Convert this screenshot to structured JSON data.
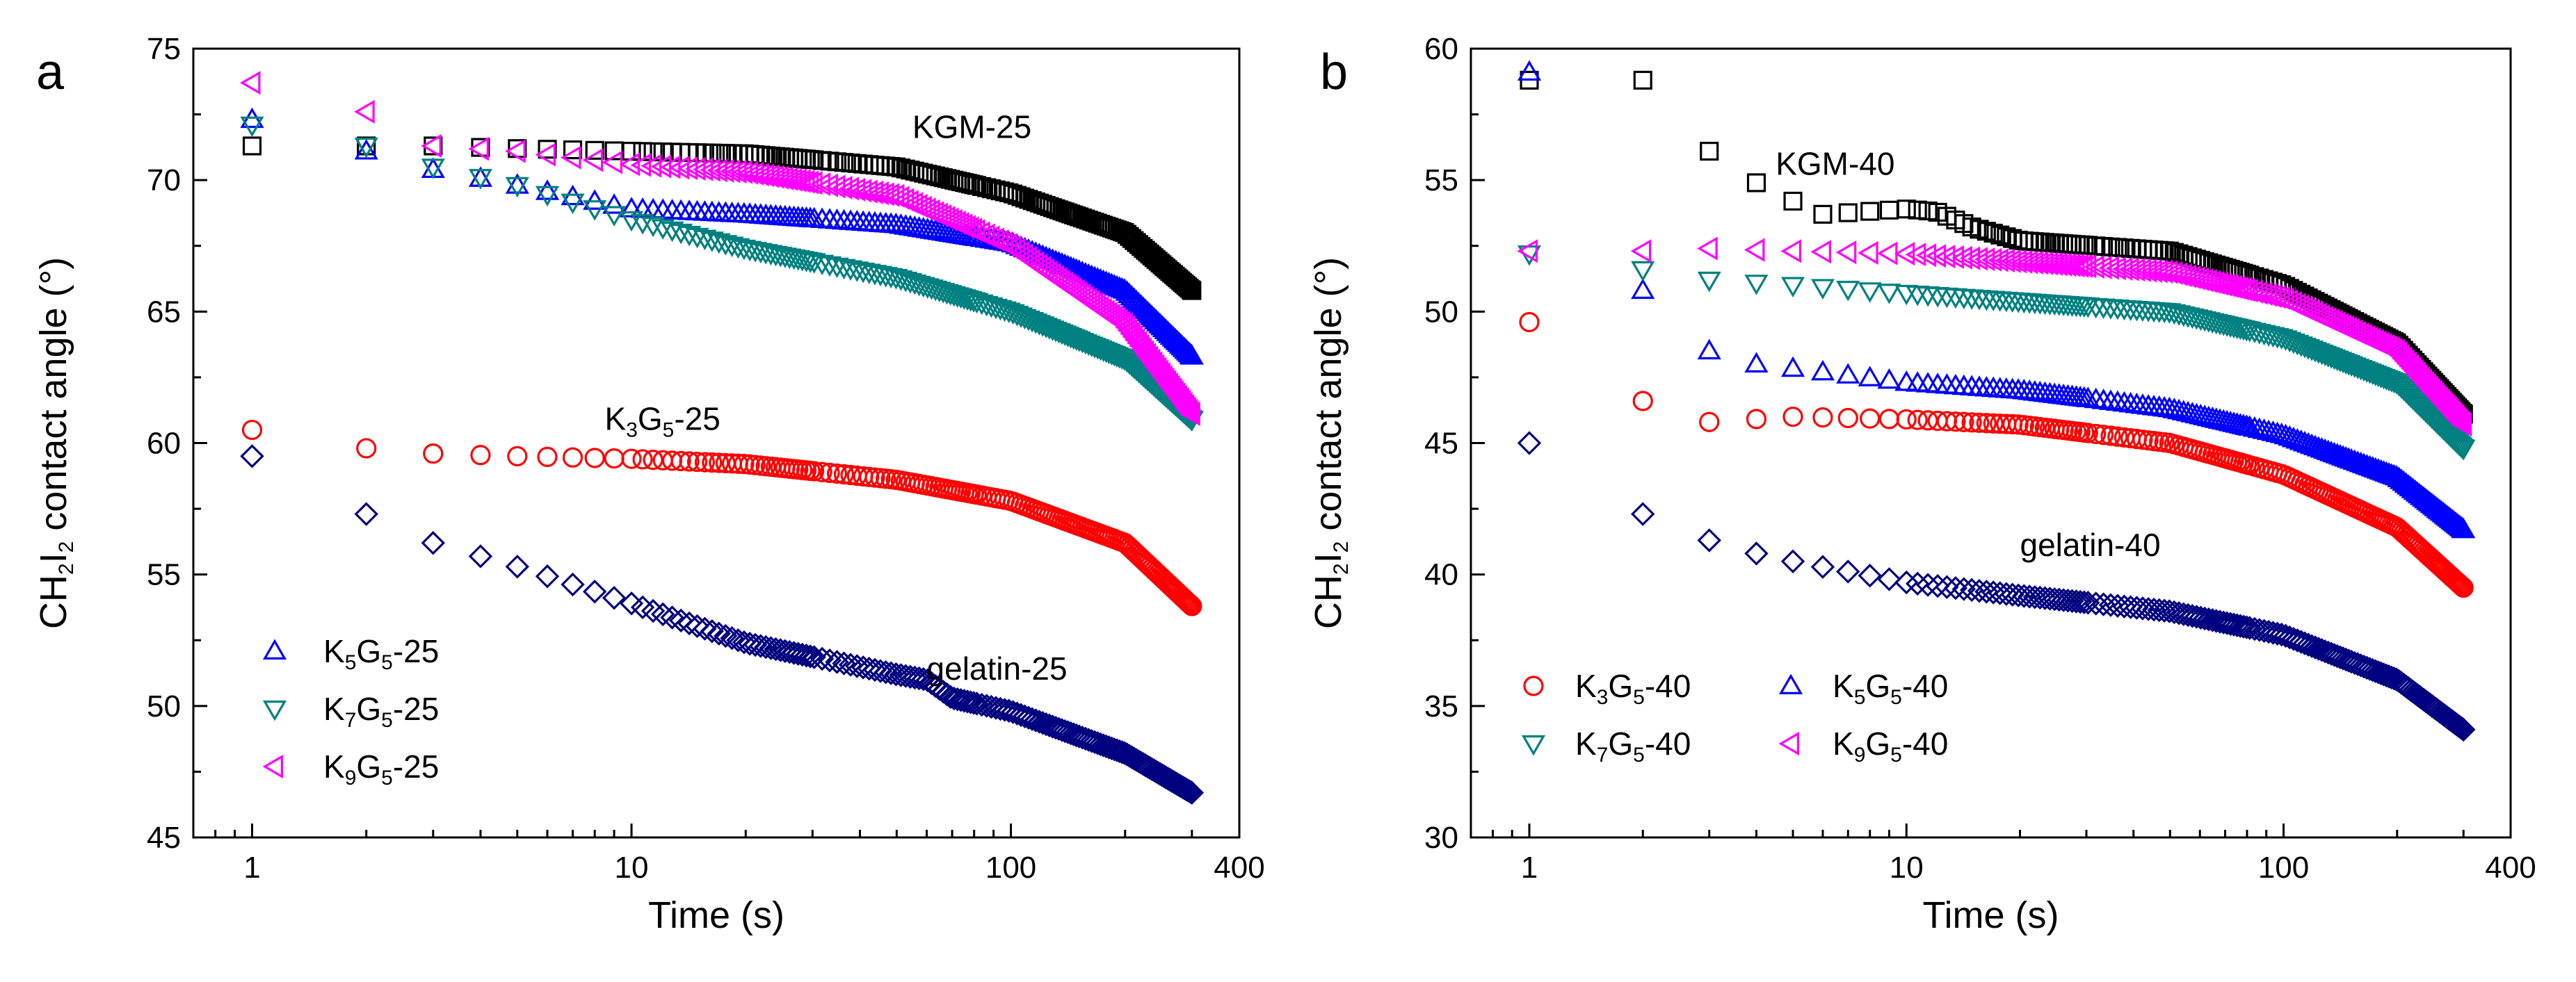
{
  "colors": {
    "KGM": "#000000",
    "K3G5": "#ff0000",
    "K5G5": "#0000ff",
    "K7G5": "#008080",
    "K9G5": "#ff00ff",
    "gelatin": "#000080"
  },
  "chart_data": [
    {
      "type": "scatter",
      "panel": "a",
      "xscale": "log",
      "xlim": [
        0.7,
        400
      ],
      "ylim": [
        45,
        75
      ],
      "xticks": [
        {
          "v": 1,
          "label": "1"
        },
        {
          "v": 10,
          "label": "10"
        },
        {
          "v": 100,
          "label": "100"
        },
        {
          "v": 400,
          "label": "400"
        }
      ],
      "yticks": [
        45,
        50,
        55,
        60,
        65,
        70,
        75
      ],
      "xlabel": "Time (s)",
      "ylabel": "CH₂I₂ contact angle (°)",
      "ylabel_parts": [
        "CH",
        "2",
        "I",
        "2",
        " contact angle (°)"
      ],
      "curve_labels": [
        {
          "series": "KGM",
          "text": "KGM-25",
          "at": [
            55,
            71.6
          ]
        },
        {
          "series": "K3G5",
          "parts": [
            "K",
            "3",
            "G",
            "5",
            "-25"
          ],
          "at": [
            8.5,
            60.5
          ]
        },
        {
          "series": "gelatin",
          "text": "gelatin-25",
          "at": [
            60,
            51.0
          ]
        }
      ],
      "legend": {
        "placement": "bottom-left",
        "entries": [
          {
            "series": "K5G5",
            "marker": "triangle-up",
            "parts": [
              "K",
              "5",
              "G",
              "5",
              "-25"
            ]
          },
          {
            "series": "K7G5",
            "marker": "triangle-down",
            "parts": [
              "K",
              "7",
              "G",
              "5",
              "-25"
            ]
          },
          {
            "series": "K9G5",
            "marker": "triangle-left",
            "parts": [
              "K",
              "9",
              "G",
              "5",
              "-25"
            ]
          }
        ]
      },
      "series": [
        {
          "name": "KGM",
          "marker": "square",
          "key": [
            [
              1,
              71.3
            ],
            [
              2,
              71.3
            ],
            [
              3,
              71.3
            ],
            [
              5,
              71.2
            ],
            [
              10,
              71.1
            ],
            [
              20,
              71.0
            ],
            [
              50,
              70.5
            ],
            [
              100,
              69.5
            ],
            [
              200,
              68.0
            ],
            [
              300,
              65.8
            ]
          ]
        },
        {
          "name": "K3G5",
          "marker": "circle",
          "key": [
            [
              1,
              60.5
            ],
            [
              2,
              59.8
            ],
            [
              3,
              59.6
            ],
            [
              5,
              59.5
            ],
            [
              10,
              59.4
            ],
            [
              20,
              59.2
            ],
            [
              50,
              58.6
            ],
            [
              100,
              57.8
            ],
            [
              200,
              56.2
            ],
            [
              300,
              53.8
            ]
          ]
        },
        {
          "name": "K5G5",
          "marker": "triangle-up",
          "key": [
            [
              1,
              72.3
            ],
            [
              2,
              71.1
            ],
            [
              3,
              70.4
            ],
            [
              5,
              69.8
            ],
            [
              10,
              68.9
            ],
            [
              20,
              68.7
            ],
            [
              50,
              68.3
            ],
            [
              100,
              67.6
            ],
            [
              200,
              65.8
            ],
            [
              300,
              63.3
            ]
          ]
        },
        {
          "name": "K7G5",
          "marker": "triangle-down",
          "key": [
            [
              1,
              72.1
            ],
            [
              2,
              71.3
            ],
            [
              3,
              70.5
            ],
            [
              5,
              69.8
            ],
            [
              10,
              68.5
            ],
            [
              20,
              67.4
            ],
            [
              50,
              66.3
            ],
            [
              100,
              65.0
            ],
            [
              200,
              63.2
            ],
            [
              300,
              60.9
            ]
          ]
        },
        {
          "name": "K9G5",
          "marker": "triangle-left",
          "key": [
            [
              1,
              73.7
            ],
            [
              2,
              72.6
            ],
            [
              3,
              71.3
            ],
            [
              5,
              71.1
            ],
            [
              10,
              70.6
            ],
            [
              20,
              70.3
            ],
            [
              50,
              69.4
            ],
            [
              100,
              67.5
            ],
            [
              200,
              64.5
            ],
            [
              300,
              61.1
            ]
          ]
        },
        {
          "name": "gelatin",
          "marker": "diamond",
          "key": [
            [
              1,
              59.5
            ],
            [
              2,
              57.3
            ],
            [
              3,
              56.2
            ],
            [
              5,
              55.3
            ],
            [
              10,
              53.9
            ],
            [
              20,
              52.4
            ],
            [
              50,
              51.2
            ],
            [
              60,
              51.0
            ],
            [
              70,
              50.3
            ],
            [
              100,
              49.8
            ],
            [
              200,
              48.2
            ],
            [
              300,
              46.7
            ]
          ]
        }
      ]
    },
    {
      "type": "scatter",
      "panel": "b",
      "xscale": "log",
      "xlim": [
        0.7,
        400
      ],
      "ylim": [
        30,
        60
      ],
      "xticks": [
        {
          "v": 1,
          "label": "1"
        },
        {
          "v": 10,
          "label": "10"
        },
        {
          "v": 100,
          "label": "100"
        },
        {
          "v": 400,
          "label": "400"
        }
      ],
      "yticks": [
        30,
        35,
        40,
        45,
        50,
        55,
        60
      ],
      "xlabel": "Time (s)",
      "ylabel": "CH₂I₂ contact angle (°)",
      "ylabel_parts": [
        "CH",
        "2",
        "I",
        "2",
        " contact angle (°)"
      ],
      "curve_labels": [
        {
          "series": "KGM",
          "text": "KGM-40",
          "at": [
            4.5,
            55.2
          ]
        },
        {
          "series": "gelatin",
          "text": "gelatin-40",
          "at": [
            20,
            40.7
          ]
        }
      ],
      "legend": {
        "placement": "bottom-left",
        "entries": [
          {
            "series": "K3G5",
            "marker": "circle",
            "parts": [
              "K",
              "3",
              "G",
              "5",
              "-40"
            ]
          },
          {
            "series": "K5G5",
            "marker": "triangle-up",
            "parts": [
              "K",
              "5",
              "G",
              "5",
              "-40"
            ]
          },
          {
            "series": "K7G5",
            "marker": "triangle-down",
            "parts": [
              "K",
              "7",
              "G",
              "5",
              "-40"
            ]
          },
          {
            "series": "K9G5",
            "marker": "triangle-left",
            "parts": [
              "K",
              "9",
              "G",
              "5",
              "-40"
            ]
          }
        ]
      },
      "series": [
        {
          "name": "KGM",
          "marker": "square",
          "key": [
            [
              1,
              58.8
            ],
            [
              2,
              58.8
            ],
            [
              3,
              56.1
            ],
            [
              4,
              54.9
            ],
            [
              5,
              54.2
            ],
            [
              6,
              53.7
            ],
            [
              10,
              53.9
            ],
            [
              12,
              53.8
            ],
            [
              15,
              53.2
            ],
            [
              20,
              52.7
            ],
            [
              50,
              52.3
            ],
            [
              100,
              51.0
            ],
            [
              200,
              48.8
            ],
            [
              300,
              46.1
            ]
          ]
        },
        {
          "name": "K3G5",
          "marker": "circle",
          "key": [
            [
              1,
              49.6
            ],
            [
              2,
              46.6
            ],
            [
              3,
              45.8
            ],
            [
              5,
              46.0
            ],
            [
              10,
              45.9
            ],
            [
              20,
              45.7
            ],
            [
              50,
              45.0
            ],
            [
              100,
              43.8
            ],
            [
              200,
              41.8
            ],
            [
              300,
              39.5
            ]
          ]
        },
        {
          "name": "K5G5",
          "marker": "triangle-up",
          "key": [
            [
              1,
              59.1
            ],
            [
              2,
              50.8
            ],
            [
              3,
              48.5
            ],
            [
              4,
              48.0
            ],
            [
              6,
              47.7
            ],
            [
              10,
              47.3
            ],
            [
              20,
              47.0
            ],
            [
              50,
              46.3
            ],
            [
              100,
              45.3
            ],
            [
              200,
              43.7
            ],
            [
              300,
              41.7
            ]
          ]
        },
        {
          "name": "K7G5",
          "marker": "triangle-down",
          "key": [
            [
              1,
              52.2
            ],
            [
              2,
              51.6
            ],
            [
              3,
              51.2
            ],
            [
              5,
              51.0
            ],
            [
              10,
              50.7
            ],
            [
              20,
              50.4
            ],
            [
              50,
              50.0
            ],
            [
              100,
              49.0
            ],
            [
              200,
              47.3
            ],
            [
              300,
              44.8
            ]
          ]
        },
        {
          "name": "K9G5",
          "marker": "triangle-left",
          "key": [
            [
              1,
              52.3
            ],
            [
              2,
              52.3
            ],
            [
              3,
              52.4
            ],
            [
              5,
              52.3
            ],
            [
              10,
              52.2
            ],
            [
              20,
              51.9
            ],
            [
              50,
              51.5
            ],
            [
              100,
              50.5
            ],
            [
              200,
              48.5
            ],
            [
              300,
              45.7
            ]
          ]
        },
        {
          "name": "gelatin",
          "marker": "diamond",
          "key": [
            [
              1,
              45.0
            ],
            [
              2,
              42.3
            ],
            [
              3,
              41.3
            ],
            [
              4,
              40.8
            ],
            [
              5,
              40.5
            ],
            [
              10,
              39.7
            ],
            [
              20,
              39.2
            ],
            [
              50,
              38.6
            ],
            [
              100,
              37.7
            ],
            [
              200,
              36.0
            ],
            [
              300,
              34.1
            ]
          ]
        }
      ]
    }
  ]
}
